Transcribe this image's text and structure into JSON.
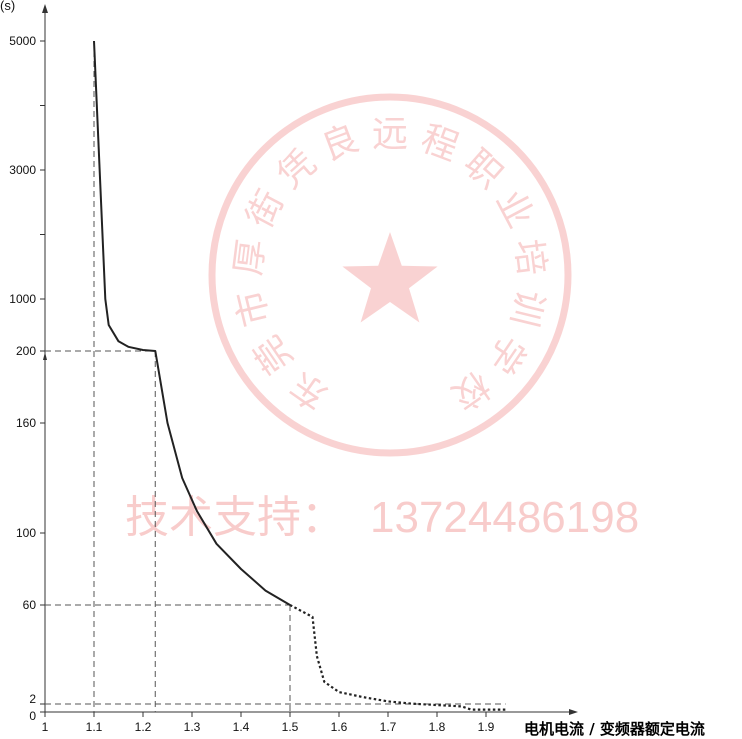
{
  "chart_data": {
    "type": "line",
    "title": "",
    "y_unit": "(s)",
    "xlabel": "电机电流 / 变频器额定电流",
    "ylabel": "",
    "xlim": [
      1.0,
      1.95
    ],
    "x_ticks": [
      "1",
      "1.1",
      "1.2",
      "1.3",
      "1.4",
      "1.5",
      "1.6",
      "1.7",
      "1.8",
      "1.9"
    ],
    "y_ticks": [
      "0",
      "2",
      "60",
      "100",
      "160",
      "200",
      "1000",
      "3000",
      "5000"
    ],
    "y_scale": "piecewise (broken axis, non-linear)",
    "grid": false,
    "legend": "none",
    "series": [
      {
        "style": "solid",
        "points": [
          [
            1.1,
            5000
          ],
          [
            1.123,
            1000
          ],
          [
            1.13,
            600
          ],
          [
            1.15,
            350
          ],
          [
            1.17,
            265
          ],
          [
            1.2,
            215
          ],
          [
            1.225,
            200
          ],
          [
            1.25,
            160
          ],
          [
            1.28,
            130
          ],
          [
            1.31,
            112
          ],
          [
            1.35,
            94
          ],
          [
            1.4,
            80
          ],
          [
            1.45,
            68
          ],
          [
            1.5,
            60
          ]
        ]
      },
      {
        "style": "dotted",
        "points": [
          [
            1.5,
            60
          ],
          [
            1.546,
            53
          ],
          [
            1.555,
            30
          ],
          [
            1.57,
            15
          ],
          [
            1.6,
            9
          ],
          [
            1.65,
            6
          ],
          [
            1.7,
            3.5
          ],
          [
            1.75,
            2.2
          ],
          [
            1.85,
            1.4
          ],
          [
            1.87,
            0.6
          ],
          [
            1.94,
            0.6
          ]
        ]
      }
    ],
    "reference_lines": [
      {
        "x": 1.1,
        "y": 5000
      },
      {
        "x": 1.225,
        "y": 200
      },
      {
        "x": 1.5,
        "y": 60
      },
      {
        "x": 1.94,
        "y": 2
      }
    ]
  },
  "watermark": {
    "seal_text": "东莞市厚街凭良远程职业培训学校",
    "support_label": "技术支持：",
    "support_number": "13724486198",
    "seal_color": "#e53935"
  }
}
